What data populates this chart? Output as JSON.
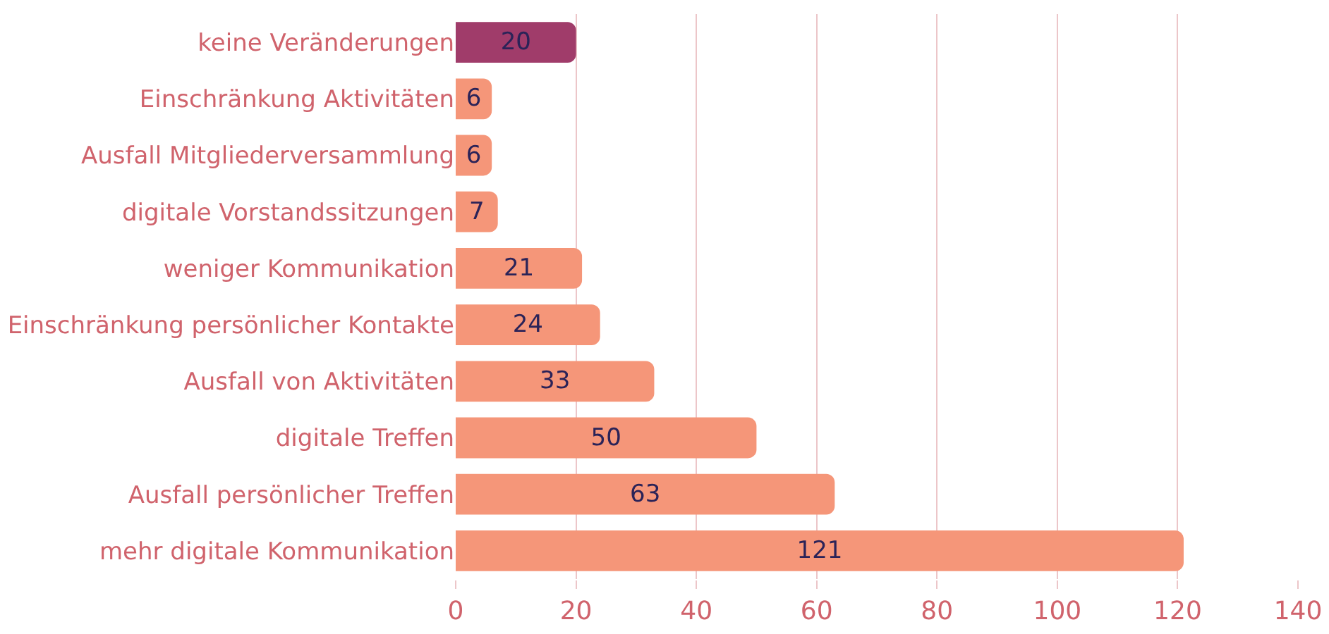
{
  "chart_data": {
    "type": "bar",
    "orientation": "horizontal",
    "categories": [
      "keine Veränderungen",
      "Einschränkung Aktivitäten",
      "Ausfall Mitgliederversammlung",
      "digitale Vorstandssitzungen",
      "weniger Kommunikation",
      "Einschränkung persönlicher Kontakte",
      "Ausfall von Aktivitäten",
      "digitale Treffen",
      "Ausfall persönlicher Treffen",
      "mehr digitale Kommunikation"
    ],
    "values": [
      20,
      6,
      6,
      7,
      21,
      24,
      33,
      50,
      63,
      121
    ],
    "colors": [
      "#a03c6a",
      "#f59679",
      "#f59679",
      "#f59679",
      "#f59679",
      "#f59679",
      "#f59679",
      "#f59679",
      "#f59679",
      "#f59679"
    ],
    "data_labels": true,
    "xlim": [
      0,
      140
    ],
    "xticks": [
      0,
      20,
      40,
      60,
      80,
      100,
      120,
      140
    ],
    "grid": "x",
    "legend": false
  }
}
